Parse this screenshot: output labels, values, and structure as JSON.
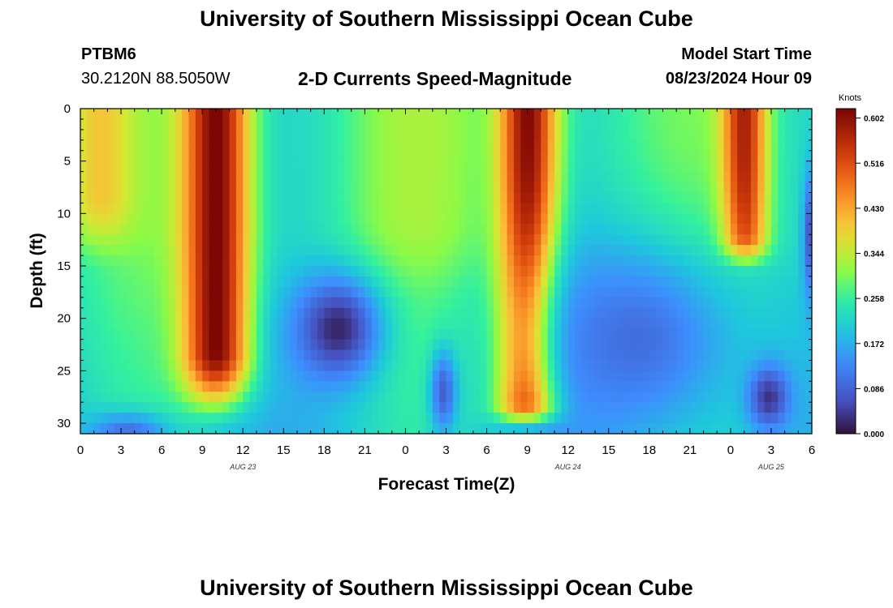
{
  "header": {
    "title": "University of Southern Mississippi Ocean Cube",
    "station_id": "PTBM6",
    "coordinates": "30.2120N  88.5050W",
    "chart_title": "2-D Currents Speed-Magnitude",
    "run_label": "Model Start Time",
    "run_time": "08/23/2024 Hour 09"
  },
  "footer": {
    "title": "University of Southern Mississippi Ocean Cube"
  },
  "chart_data": {
    "type": "heatmap",
    "title": "2-D Currents Speed-Magnitude",
    "xlabel": "Forecast Time(Z)",
    "ylabel": "Depth (ft)",
    "x_range_hours": [
      0,
      54
    ],
    "y_range_ft": [
      0,
      31
    ],
    "x_ticks": [
      "0",
      "3",
      "6",
      "9",
      "12",
      "15",
      "18",
      "21",
      "0",
      "3",
      "6",
      "9",
      "12",
      "15",
      "18",
      "21",
      "0",
      "3",
      "6"
    ],
    "y_ticks": [
      "0",
      "5",
      "10",
      "15",
      "20",
      "25",
      "30"
    ],
    "date_labels": [
      {
        "text": "AUG 23",
        "hour": 12
      },
      {
        "text": "AUG 24",
        "hour": 36
      },
      {
        "text": "AUG 25",
        "hour": 51
      }
    ],
    "colorbar": {
      "unit": "Knots",
      "min": 0.0,
      "max": 0.62,
      "ticks": [
        "0.602",
        "0.516",
        "0.430",
        "0.344",
        "0.258",
        "0.172",
        "0.086",
        "0.000"
      ]
    },
    "features": [
      {
        "kind": "surface-core",
        "hour": 10,
        "speed": 0.62,
        "depth_top": 0,
        "depth_bottom": 23,
        "depth_fade": 31,
        "width_hours": 2.4
      },
      {
        "kind": "surface-core",
        "hour": 33,
        "speed": 0.62,
        "depth_top": 0,
        "depth_bottom": 28,
        "depth_fade": 31,
        "width_hours": 2.2
      },
      {
        "kind": "surface-core",
        "hour": 49,
        "speed": 0.58,
        "depth_top": 0,
        "depth_bottom": 12,
        "depth_fade": 16,
        "width_hours": 1.6
      },
      {
        "kind": "surface-band",
        "hour": 1.5,
        "speed": 0.4,
        "depth_top": 0,
        "depth_bottom": 8,
        "depth_fade": 16,
        "width_hours": 2.5
      },
      {
        "kind": "surface-band",
        "hour": 25,
        "speed": 0.33,
        "depth_top": 0,
        "depth_bottom": 10,
        "depth_fade": 19,
        "width_hours": 4
      },
      {
        "kind": "low-spot",
        "hour": 19,
        "depth": 21,
        "speed": 0.02,
        "radius_hours": 3.2,
        "radius_ft": 5
      },
      {
        "kind": "low-spot",
        "hour": 50.8,
        "depth": 27.5,
        "speed": 0.02,
        "radius_hours": 1.5,
        "radius_ft": 3
      },
      {
        "kind": "low-spot",
        "hour": 26.8,
        "depth": 27,
        "speed": 0.08,
        "radius_hours": 1,
        "radius_ft": 4
      },
      {
        "kind": "low-spot",
        "hour": 41,
        "depth": 22,
        "speed": 0.1,
        "radius_hours": 8,
        "radius_ft": 10
      },
      {
        "kind": "low-spot",
        "hour": 3.5,
        "depth": 31,
        "speed": 0.1,
        "radius_hours": 3,
        "radius_ft": 2
      },
      {
        "kind": "low-spot",
        "hour": 53.8,
        "depth": 12,
        "speed": 0.08,
        "radius_hours": 0.5,
        "radius_ft": 6
      }
    ]
  }
}
